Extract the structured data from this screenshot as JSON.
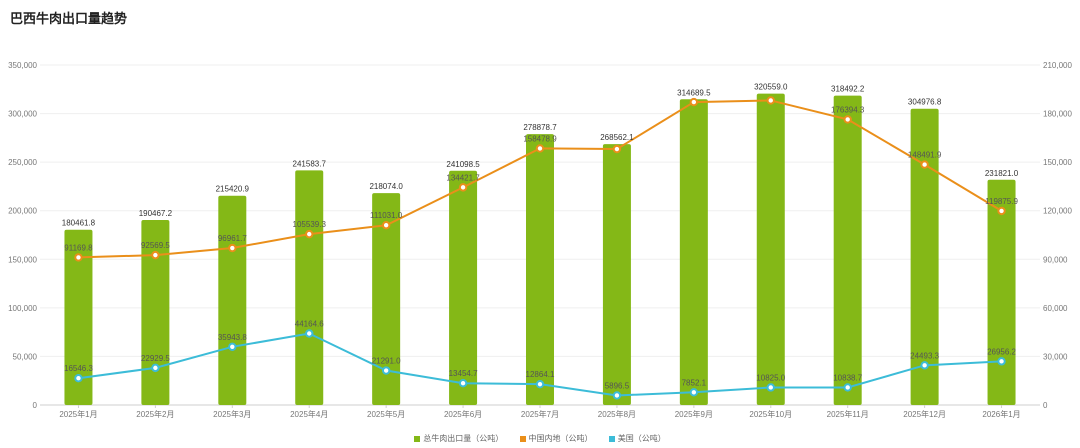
{
  "title": "巴西牛肉出口量趋势",
  "colors": {
    "bar": "#84b817",
    "china": "#ea8f1a",
    "usa": "#3cbcd8"
  },
  "chart_data": {
    "type": "bar",
    "title": "巴西牛肉出口量趋势",
    "categories": [
      "2025年1月",
      "2025年2月",
      "2025年3月",
      "2025年4月",
      "2025年5月",
      "2025年6月",
      "2025年7月",
      "2025年8月",
      "2025年9月",
      "2025年10月",
      "2025年11月",
      "2025年12月",
      "2026年1月"
    ],
    "series": [
      {
        "name": "总牛肉出口量（公吨）",
        "type": "bar",
        "axis": "left",
        "values": [
          180461.8,
          190467.2,
          215420.9,
          241583.7,
          218074.0,
          241098.5,
          278878.7,
          268562.1,
          314689.5,
          320559.0,
          318492.2,
          304976.8,
          231821.0
        ],
        "labels": [
          "180461.8",
          "190467.2",
          "215420.9",
          "241583.7",
          "218074.0",
          "241098.5",
          "278878.7",
          "268562.1",
          "314689.5",
          "320559.0",
          "318492.2",
          "304976.8",
          "231821.0"
        ]
      },
      {
        "name": "中国内地（公吨）",
        "type": "line",
        "axis": "right",
        "values": [
          91169.8,
          92569.5,
          96961.7,
          105539.3,
          111031.0,
          134421.7,
          158478.9,
          158100.0,
          187100.0,
          188100.0,
          176394.3,
          148491.9,
          119875.9
        ],
        "labels": [
          "91169.8",
          "92569.5",
          "96961.7",
          "105539.3",
          "111031.0",
          "134421.7",
          "158478.9",
          "",
          "",
          "",
          "176394.3",
          "148491.9",
          "119875.9"
        ]
      },
      {
        "name": "美国（公吨）",
        "type": "line",
        "axis": "right",
        "values": [
          16546.3,
          22929.5,
          35943.8,
          44164.6,
          21291.0,
          13454.7,
          12864.1,
          5896.5,
          7852.1,
          10825.0,
          10838.7,
          24493.3,
          26956.2
        ],
        "labels": [
          "16546.3",
          "22929.5",
          "35943.8",
          "44164.6",
          "21291.0",
          "13454.7",
          "12864.1",
          "5896.5",
          "7852.1",
          "10825.0",
          "10838.7",
          "24493.3",
          "26956.2"
        ]
      }
    ],
    "y_left": {
      "min": 0,
      "max": 350000,
      "ticks": [
        "0",
        "50,000",
        "100,000",
        "150,000",
        "200,000",
        "250,000",
        "300,000",
        "350,000"
      ]
    },
    "y_right": {
      "min": 0,
      "max": 210000,
      "ticks": [
        "0",
        "30,000",
        "60,000",
        "90,000",
        "120,000",
        "150,000",
        "180,000",
        "210,000"
      ]
    },
    "grid": true,
    "legend_position": "bottom"
  }
}
